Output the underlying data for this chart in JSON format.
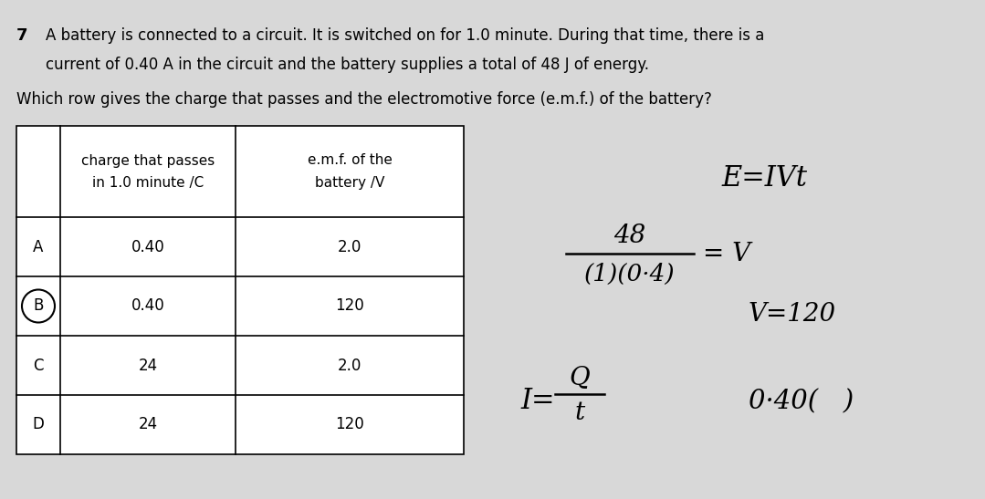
{
  "bg_color": "#d8d8d8",
  "question_number": "7",
  "question_text_line1": "A battery is connected to a circuit. It is switched on for 1.0 minute. During that time, there is a",
  "question_text_line2": "current of 0.40 A in the circuit and the battery supplies a total of 48 J of energy.",
  "question_text_line3": "Which row gives the charge that passes and the electromotive force (e.m.f.) of the battery?",
  "col1_header_line1": "charge that passes",
  "col1_header_line2": "in 1.0 minute /C",
  "col2_header_line1": "e.m.f. of the",
  "col2_header_line2": "battery /V",
  "rows": [
    {
      "label": "A",
      "col1": "0.40",
      "col2": "2.0",
      "circled": false
    },
    {
      "label": "B",
      "col1": "0.40",
      "col2": "120",
      "circled": true
    },
    {
      "label": "C",
      "col1": "24",
      "col2": "2.0",
      "circled": false
    },
    {
      "label": "D",
      "col1": "24",
      "col2": "120",
      "circled": false
    }
  ],
  "ann1": "E≈IVt",
  "ann2_num": "48",
  "ann2_den": "(1)(0·4)",
  "ann2_eq": "= V",
  "ann3": "V=120",
  "ann4_num": "Q",
  "ann4_den": "t",
  "ann5": "0·40(   )"
}
